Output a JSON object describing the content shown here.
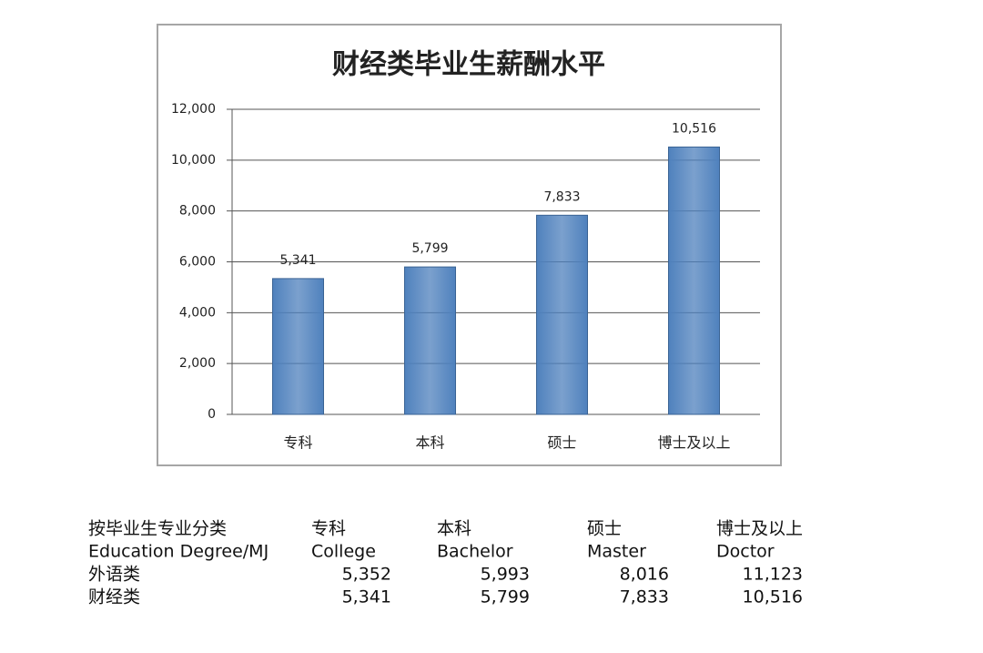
{
  "chart_data": {
    "type": "bar",
    "title": "财经类毕业生薪酬水平",
    "categories": [
      "专科",
      "本科",
      "硕士",
      "博士及以上"
    ],
    "values": [
      5341,
      5799,
      7833,
      10516
    ],
    "value_labels": [
      "5,341",
      "5,799",
      "7,833",
      "10,516"
    ],
    "color": "#4f81bd",
    "ylim": [
      0,
      12000
    ],
    "yticks": [
      0,
      {
        "value": 2000,
        "label": "2,000"
      },
      {
        "value": 4000,
        "label": "4,000"
      },
      {
        "value": 6000,
        "label": "6,000"
      },
      {
        "value": 8000,
        "label": "8,000"
      },
      {
        "value": 10000,
        "label": "10,000"
      },
      {
        "value": 12000,
        "label": "12,000"
      }
    ],
    "grid": true
  },
  "table": {
    "rows": [
      [
        "按毕业生专业分类",
        "专科",
        "本科",
        "硕士",
        "博士及以上"
      ],
      [
        "Education Degree/MJ",
        "College",
        "Bachelor",
        "Master",
        "Doctor"
      ],
      [
        "外语类",
        "5,352",
        "5,993",
        "8,016",
        "11,123"
      ],
      [
        "财经类",
        "5,341",
        "5,799",
        "7,833",
        "10,516"
      ]
    ]
  }
}
